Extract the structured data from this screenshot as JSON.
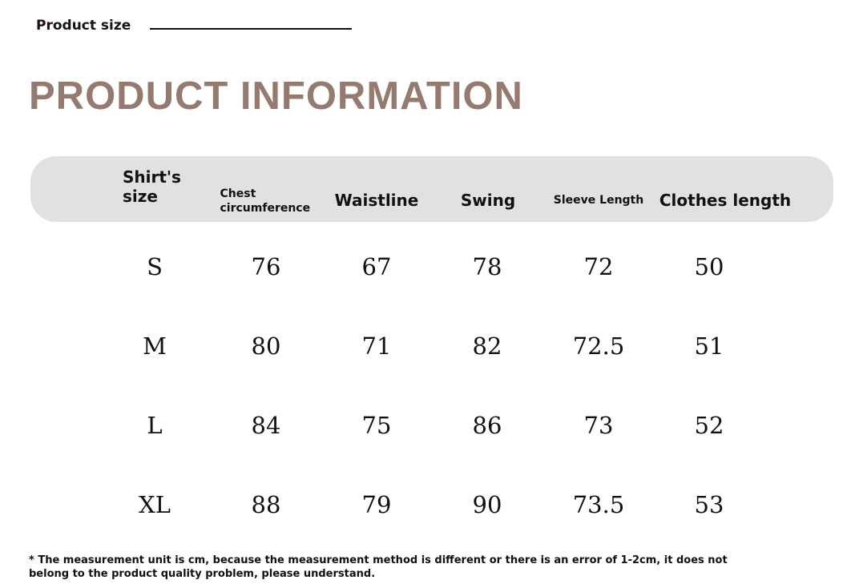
{
  "header": {
    "subtitle": "Product size",
    "title": "PRODUCT INFORMATION"
  },
  "table": {
    "columns": [
      "Shirt's size",
      "Chest circumference",
      "Waistline",
      "Swing",
      "Sleeve Length",
      "Clothes length"
    ],
    "rows": [
      [
        "S",
        "76",
        "67",
        "78",
        "72",
        "50"
      ],
      [
        "M",
        "80",
        "71",
        "82",
        "72.5",
        "51"
      ],
      [
        "L",
        "84",
        "75",
        "86",
        "73",
        "52"
      ],
      [
        "XL",
        "88",
        "79",
        "90",
        "73.5",
        "53"
      ]
    ]
  },
  "footnote": {
    "line1": "* The measurement unit is cm, because the measurement method is different or there is an error of 1-2cm, it does not",
    "line2": "belong to the product quality problem, please understand."
  },
  "colors": {
    "title": "#957b6f",
    "header_bg": "#e1e1e1"
  }
}
